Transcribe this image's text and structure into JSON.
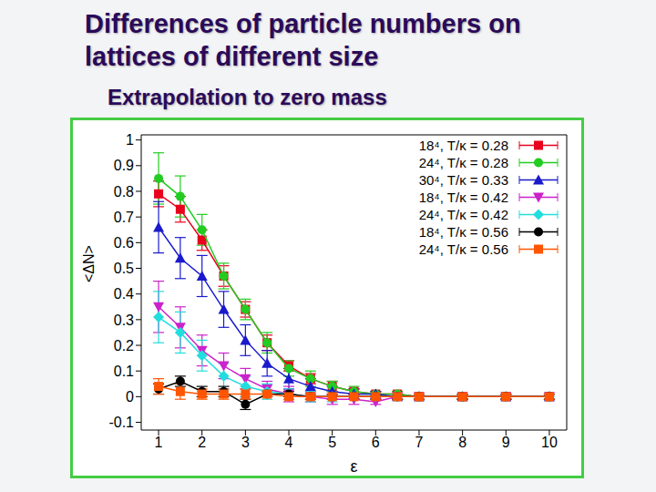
{
  "chart_data": {
    "type": "scatter",
    "title": "Differences of particle numbers on lattices of different size",
    "subtitle": "Extrapolation to zero mass",
    "x_label": "ε",
    "y_label": "<ΔN>",
    "xlim": [
      0.6,
      10.4
    ],
    "xticks": [
      1,
      2,
      3,
      4,
      5,
      6,
      7,
      8,
      9,
      10
    ],
    "ylim": [
      -0.13,
      1.02
    ],
    "yticks": [
      -0.1,
      0,
      0.1,
      0.2,
      0.3,
      0.4,
      0.5,
      0.6,
      0.7,
      0.8,
      0.9,
      1
    ],
    "grid": false,
    "legend": "upper right",
    "x": [
      1,
      1.5,
      2,
      2.5,
      3,
      3.5,
      4,
      4.5,
      5,
      5.5,
      6,
      6.5,
      7,
      8,
      9,
      10
    ],
    "series": [
      {
        "name": "18⁴, T/κ = 0.28",
        "color": "#e8001c",
        "marker": "square",
        "line_style": "solid",
        "values": [
          0.79,
          0.73,
          0.61,
          0.47,
          0.34,
          0.21,
          0.12,
          0.07,
          0.04,
          0.02,
          0.01,
          0.01,
          0,
          0,
          0,
          0
        ],
        "errors": [
          0.05,
          0.05,
          0.04,
          0.04,
          0.03,
          0.03,
          0.02,
          0.02,
          0.02,
          0.01,
          0.01,
          0.01,
          0.01,
          0.01,
          0.01,
          0.01
        ]
      },
      {
        "name": "24⁴, T/κ = 0.28",
        "color": "#22cc22",
        "marker": "circle",
        "line_style": "solid",
        "values": [
          0.85,
          0.78,
          0.65,
          0.47,
          0.34,
          0.21,
          0.11,
          0.07,
          0.04,
          0.02,
          0.01,
          0.01,
          0,
          0,
          0,
          0
        ],
        "errors": [
          0.1,
          0.08,
          0.06,
          0.05,
          0.04,
          0.04,
          0.03,
          0.03,
          0.02,
          0.02,
          0.01,
          0.01,
          0.01,
          0.01,
          0.01,
          0.01
        ]
      },
      {
        "name": "30⁴, T/κ = 0.33",
        "color": "#1a1acc",
        "marker": "triangle",
        "line_style": "solid",
        "values": [
          0.66,
          0.54,
          0.47,
          0.34,
          0.22,
          0.13,
          0.07,
          0.04,
          0.02,
          0.01,
          0.01,
          0,
          0,
          0,
          0,
          0
        ],
        "errors": [
          0.1,
          0.08,
          0.08,
          0.07,
          0.06,
          0.05,
          0.04,
          0.03,
          0.02,
          0.02,
          0.01,
          0.01,
          0.01,
          0.01,
          0.01,
          0.01
        ]
      },
      {
        "name": "18⁴, T/κ = 0.42",
        "color": "#cc22cc",
        "marker": "triangle-down",
        "line_style": "solid",
        "values": [
          0.35,
          0.27,
          0.18,
          0.12,
          0.07,
          0.03,
          0.01,
          0,
          -0.01,
          -0.01,
          -0.02,
          0,
          0,
          0,
          0,
          0
        ],
        "errors": [
          0.1,
          0.08,
          0.06,
          0.05,
          0.04,
          0.03,
          0.03,
          0.02,
          0.02,
          0.02,
          0.01,
          0.01,
          0.01,
          0.01,
          0.01,
          0.01
        ]
      },
      {
        "name": "24⁴, T/κ = 0.42",
        "color": "#22dddd",
        "marker": "diamond",
        "line_style": "solid",
        "values": [
          0.31,
          0.25,
          0.16,
          0.08,
          0.04,
          0.02,
          0.01,
          0,
          0,
          0,
          0,
          0,
          0,
          0,
          0,
          0
        ],
        "errors": [
          0.1,
          0.08,
          0.06,
          0.05,
          0.04,
          0.03,
          0.02,
          0.02,
          0.02,
          0.01,
          0.01,
          0.01,
          0.01,
          0.01,
          0.01,
          0.01
        ]
      },
      {
        "name": "18⁴, T/κ = 0.56",
        "color": "#000000",
        "marker": "circle",
        "line_style": "solid",
        "values": [
          0.03,
          0.06,
          0.02,
          0.02,
          -0.03,
          0.01,
          0.01,
          0,
          0,
          0,
          0,
          0,
          0,
          0,
          0,
          0
        ],
        "errors": [
          0.02,
          0.02,
          0.02,
          0.02,
          0.02,
          0.01,
          0.01,
          0.01,
          0.01,
          0.01,
          0.01,
          0.01,
          0.01,
          0.01,
          0.01,
          0.01
        ]
      },
      {
        "name": "24⁴, T/κ = 0.56",
        "color": "#ff5500",
        "marker": "square",
        "line_style": "solid",
        "values": [
          0.04,
          0.02,
          0.01,
          0.01,
          0.01,
          0.01,
          0,
          0,
          0,
          0,
          0,
          0,
          0,
          0,
          0,
          0
        ],
        "errors": [
          0.03,
          0.03,
          0.02,
          0.02,
          0.02,
          0.01,
          0.01,
          0.01,
          0.01,
          0.01,
          0.01,
          0.01,
          0.01,
          0.01,
          0.01,
          0.01
        ]
      }
    ]
  }
}
